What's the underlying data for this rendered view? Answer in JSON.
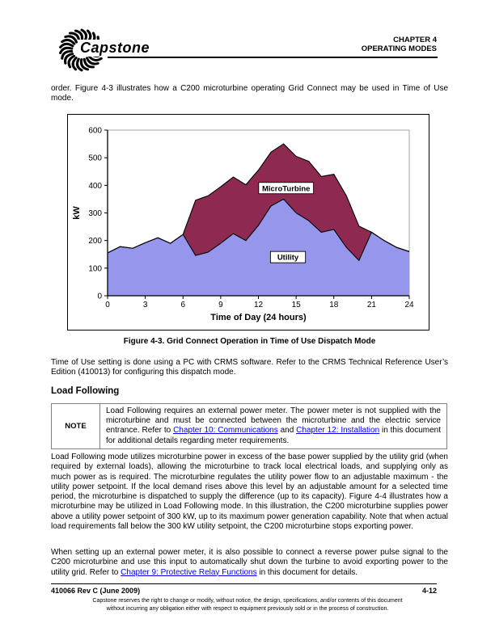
{
  "header": {
    "brand": "Capstone",
    "chapter_line1": "CHAPTER 4",
    "chapter_line2": "OPERATING MODES"
  },
  "intro_paragraph": "order. Figure 4-3 illustrates how a C200 microturbine operating Grid Connect may be used in Time of Use mode.",
  "figure": {
    "caption": "Figure 4-3.  Grid Connect Operation in Time of Use Dispatch Mode"
  },
  "chart_data": {
    "type": "area",
    "stacked": true,
    "title": "",
    "xlabel": "Time of Day (24 hours)",
    "ylabel": "kW",
    "xlim": [
      0,
      24
    ],
    "ylim": [
      0,
      600
    ],
    "x_ticks": [
      0,
      3,
      6,
      9,
      12,
      15,
      18,
      21,
      24
    ],
    "y_ticks": [
      0,
      100,
      200,
      300,
      400,
      500,
      600
    ],
    "grid": false,
    "legend_position": "inline-labels",
    "x": [
      0,
      1,
      2,
      3,
      4,
      5,
      6,
      7,
      8,
      9,
      10,
      11,
      12,
      13,
      14,
      15,
      16,
      17,
      18,
      19,
      20,
      21,
      22,
      23,
      24
    ],
    "series": [
      {
        "name": "Utility",
        "color": "#9696EC",
        "values": [
          155,
          178,
          172,
          192,
          210,
          190,
          222,
          146,
          158,
          190,
          225,
          200,
          255,
          325,
          350,
          300,
          272,
          230,
          240,
          175,
          128,
          230,
          200,
          175,
          160
        ],
        "label_pos": {
          "x": 14.35,
          "y": 140
        }
      },
      {
        "name": "MicroTurbine",
        "color": "#8E2A52",
        "values": [
          0,
          0,
          0,
          0,
          0,
          0,
          0,
          200,
          204,
          205,
          205,
          202,
          200,
          195,
          200,
          205,
          215,
          202,
          200,
          187,
          124,
          0,
          0,
          0,
          0
        ],
        "label_pos": {
          "x": 14.2,
          "y": 390
        }
      }
    ],
    "colors": {
      "outline": "#000000",
      "plot_border": "#A6A6A6"
    }
  },
  "tou_paragraph": "Time of Use setting is done using a PC with CRMS software. Refer to the CRMS Technical Reference User’s Edition (410013) for configuring this dispatch mode.",
  "load_following": {
    "heading": "Load Following"
  },
  "note": {
    "label": "NOTE",
    "before": "Load Following requires an external power meter. The power meter is not supplied with the microturbine and must be connected between the microturbine and the electric service entrance. Refer to ",
    "link1": "Chapter 10: Communications",
    "mid": " and ",
    "link2": "Chapter 12: Installation",
    "after": " in this document for additional details regarding meter requirements."
  },
  "load_following_paragraph": "Load Following mode utilizes microturbine power in excess of the base power supplied by the utility grid (when required by external loads), allowing the microturbine to track local electrical loads, and supplying only as much power as is required. The microturbine regulates the utility power flow to an adjustable maximum - the utility power setpoint. If the local demand rises above this level by an adjustable amount for a selected time period, the microturbine is dispatched to supply the difference (up to its capacity). Figure 4-4 illustrates how a microturbine may be utilized in Load Following mode. In this illustration, the C200 microturbine supplies power above a utility power setpoint of 300 kW, up to its maximum power generation capability. Note that when actual load requirements fall below the 300 kW utility setpoint, the C200 microturbine stops exporting power.",
  "power_meter_paragraph": {
    "before": "When setting up an external power meter, it is also possible to connect a reverse power pulse signal to the C200 microturbine and use this input to automatically shut down the turbine to avoid exporting power to the utility grid. Refer to ",
    "link": "Chapter 9: Protective Relay Functions",
    "after": " in this document for details."
  },
  "footer": {
    "doc_rev": "410066 Rev C (June 2009)",
    "page_number": "4-12",
    "disclaimer": [
      "Capstone reserves the right to change or modify, without notice, the design, specifications, and/or contents of this document",
      "without incurring any obligation either with respect to equipment previously sold or in the process of construction."
    ]
  },
  "link_color": "#0000EE"
}
